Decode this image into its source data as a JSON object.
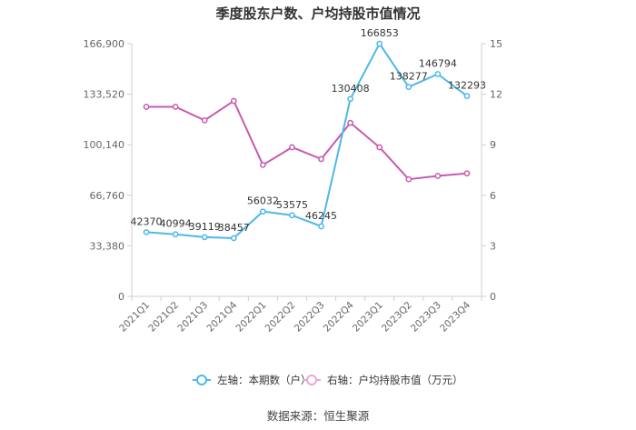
{
  "chart_data": {
    "type": "line",
    "title": "季度股东户数、户均持股市值情况",
    "categories": [
      "2021Q1",
      "2021Q2",
      "2021Q3",
      "2021Q4",
      "2022Q1",
      "2022Q2",
      "2022Q3",
      "2022Q4",
      "2023Q1",
      "2023Q2",
      "2023Q3",
      "2023Q4"
    ],
    "left_axis": {
      "min": 0,
      "max": 166900,
      "ticks": [
        0,
        33380,
        66760,
        100140,
        133520,
        166900
      ],
      "tick_labels": [
        "0",
        "33,380",
        "66,760",
        "100,140",
        "133,520",
        "166,900"
      ]
    },
    "right_axis": {
      "min": 0,
      "max": 15,
      "ticks": [
        0,
        3,
        6,
        9,
        12,
        15
      ],
      "tick_labels": [
        "0",
        "3",
        "6",
        "9",
        "12",
        "15"
      ]
    },
    "series": [
      {
        "name": "左轴：本期数（户）",
        "axis": "left",
        "color": "#4db8e8",
        "values": [
          42370,
          40994,
          39119,
          38457,
          56032,
          53575,
          46245,
          130408,
          166853,
          138277,
          146794,
          132293
        ],
        "data_labels": [
          "42370",
          "40994",
          "39119",
          "38457",
          "56032",
          "53575",
          "46245",
          "130408",
          "166853",
          "138277",
          "146794",
          "132293"
        ]
      },
      {
        "name": "右轴：户均持股市值（万元）",
        "axis": "right",
        "color": "#c95aae",
        "values": [
          11.25,
          11.25,
          10.45,
          11.6,
          7.8,
          8.85,
          8.15,
          10.3,
          8.85,
          6.95,
          7.15,
          7.3
        ]
      }
    ],
    "legend_position": "bottom",
    "grid": false
  },
  "footer": {
    "source": "数据来源：恒生聚源"
  }
}
